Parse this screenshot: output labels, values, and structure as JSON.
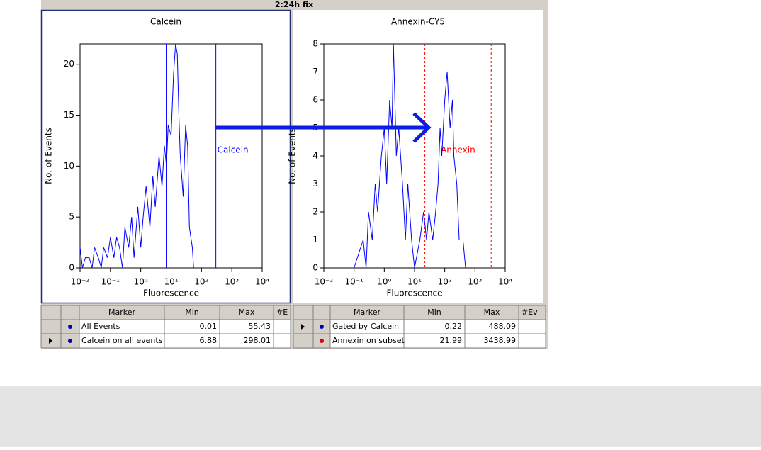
{
  "title": "2:24h fix",
  "chart_data": [
    {
      "type": "line",
      "title": "Calcein",
      "x_label": "Fluorescence",
      "y_label": "No. of Events",
      "xscale": "log",
      "color": "#0000ff",
      "x": [
        0.01,
        0.012,
        0.015,
        0.02,
        0.025,
        0.03,
        0.04,
        0.05,
        0.06,
        0.08,
        0.1,
        0.13,
        0.16,
        0.2,
        0.25,
        0.3,
        0.4,
        0.5,
        0.6,
        0.8,
        1,
        1.2,
        1.5,
        2,
        2.5,
        3,
        4,
        5,
        6,
        7,
        8,
        10,
        12,
        14,
        16,
        18,
        20,
        25,
        30,
        35,
        40,
        50,
        55
      ],
      "values": [
        2,
        0,
        1,
        1,
        0,
        2,
        1,
        0,
        2,
        1,
        3,
        1,
        3,
        2,
        0,
        4,
        2,
        5,
        1,
        6,
        2,
        5,
        8,
        4,
        9,
        6,
        11,
        8,
        12,
        10,
        14,
        13,
        19,
        22,
        21,
        15,
        11,
        7,
        14,
        12,
        4,
        2,
        0
      ],
      "xlim": [
        0.01,
        10000
      ],
      "ylim": [
        0,
        22
      ],
      "xticks": [
        {
          "value": 0.01,
          "label": "10⁻²"
        },
        {
          "value": 0.1,
          "label": "10⁻¹"
        },
        {
          "value": 1,
          "label": "10⁰"
        },
        {
          "value": 10,
          "label": "10¹"
        },
        {
          "value": 100,
          "label": "10²"
        },
        {
          "value": 1000,
          "label": "10³"
        },
        {
          "value": 10000,
          "label": "10⁴"
        }
      ],
      "yticks": [
        0,
        5,
        10,
        15,
        20
      ],
      "marker": {
        "name": "Calcein",
        "min": 6.88,
        "max": 298.01,
        "color": "#0000ff",
        "style": "solid"
      }
    },
    {
      "type": "line",
      "title": "Annexin-CY5",
      "x_label": "Fluorescence",
      "y_label": "No. of Events",
      "xscale": "log",
      "color": "#0000ff",
      "x": [
        0.1,
        0.2,
        0.25,
        0.3,
        0.4,
        0.5,
        0.6,
        0.8,
        1,
        1.2,
        1.5,
        1.8,
        2,
        2.5,
        3,
        4,
        5,
        6,
        8,
        10,
        15,
        20,
        25,
        30,
        40,
        50,
        60,
        70,
        80,
        100,
        120,
        150,
        180,
        200,
        250,
        300,
        400,
        488
      ],
      "values": [
        0,
        1,
        0,
        2,
        1,
        3,
        2,
        4,
        5,
        3,
        6,
        5,
        8,
        4,
        5,
        3,
        1,
        3,
        1,
        0,
        1,
        2,
        1,
        2,
        1,
        2,
        3,
        5,
        4,
        6,
        7,
        5,
        6,
        4,
        3,
        1,
        1,
        0
      ],
      "xlim": [
        0.01,
        10000
      ],
      "ylim": [
        0,
        8
      ],
      "xticks": [
        {
          "value": 0.01,
          "label": "10⁻²"
        },
        {
          "value": 0.1,
          "label": "10⁻¹"
        },
        {
          "value": 1,
          "label": "10⁰"
        },
        {
          "value": 10,
          "label": "10¹"
        },
        {
          "value": 100,
          "label": "10²"
        },
        {
          "value": 1000,
          "label": "10³"
        },
        {
          "value": 10000,
          "label": "10⁴"
        }
      ],
      "yticks": [
        0,
        1,
        2,
        3,
        4,
        5,
        6,
        7,
        8
      ],
      "marker": {
        "name": "Annexin",
        "min": 21.99,
        "max": 3438.99,
        "color": "#ff0000",
        "style": "dashed"
      }
    }
  ],
  "tables": [
    {
      "header": [
        "Marker",
        "Min",
        "Max",
        "#E"
      ],
      "rows": [
        {
          "color": "#0000c0",
          "cells": [
            "All Events",
            "0.01",
            "55.43"
          ]
        },
        {
          "color": "#0000c0",
          "cells": [
            "Calcein on all events",
            "6.88",
            "298.01"
          ]
        }
      ]
    },
    {
      "header": [
        "Marker",
        "Min",
        "Max",
        "#Ev"
      ],
      "rows": [
        {
          "color": "#0000c0",
          "cells": [
            "Gated by Calcein",
            "0.22",
            "488.09"
          ]
        },
        {
          "color": "#e00000",
          "cells": [
            "Annexin on subset",
            "21.99",
            "3438.99"
          ]
        }
      ]
    }
  ]
}
